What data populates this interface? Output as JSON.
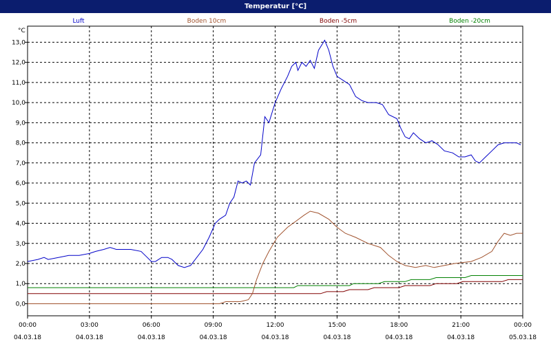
{
  "window": {
    "title": "Temperatur [°C]"
  },
  "chart_data": {
    "type": "line",
    "title": "Temperatur [°C]",
    "ylabel": "°C",
    "xlabel": "",
    "ylim": [
      -0.6,
      13.8
    ],
    "yticks": [
      0,
      1,
      2,
      3,
      4,
      5,
      6,
      7,
      8,
      9,
      10,
      11,
      12,
      13
    ],
    "ytick_labels": [
      "0,0",
      "1,0",
      "2,0",
      "3,0",
      "4,0",
      "5,0",
      "6,0",
      "7,0",
      "8,0",
      "9,0",
      "10,0",
      "11,0",
      "12,0",
      "13,0"
    ],
    "xlim": [
      "2018-03-04T00:00",
      "2018-03-05T00:00"
    ],
    "xticks": [
      {
        "time": "00:00",
        "date": "04.03.18",
        "hour": 0
      },
      {
        "time": "03:00",
        "date": "04.03.18",
        "hour": 3
      },
      {
        "time": "06:00",
        "date": "04.03.18",
        "hour": 6
      },
      {
        "time": "09:00",
        "date": "04.03.18",
        "hour": 9
      },
      {
        "time": "12:00",
        "date": "04.03.18",
        "hour": 12
      },
      {
        "time": "15:00",
        "date": "04.03.18",
        "hour": 15
      },
      {
        "time": "18:00",
        "date": "04.03.18",
        "hour": 18
      },
      {
        "time": "21:00",
        "date": "04.03.18",
        "hour": 21
      },
      {
        "time": "00:00",
        "date": "05.03.18",
        "hour": 24
      }
    ],
    "grid": true,
    "legend_position": "top",
    "series": [
      {
        "name": "Luft",
        "color": "#0000c8",
        "points": [
          [
            0,
            2.1
          ],
          [
            0.5,
            2.2
          ],
          [
            0.8,
            2.3
          ],
          [
            1,
            2.2
          ],
          [
            1.5,
            2.3
          ],
          [
            2,
            2.4
          ],
          [
            2.5,
            2.4
          ],
          [
            3,
            2.5
          ],
          [
            3.3,
            2.6
          ],
          [
            3.7,
            2.7
          ],
          [
            4,
            2.8
          ],
          [
            4.3,
            2.7
          ],
          [
            4.7,
            2.7
          ],
          [
            5,
            2.7
          ],
          [
            5.5,
            2.6
          ],
          [
            5.8,
            2.3
          ],
          [
            6,
            2.1
          ],
          [
            6.2,
            2.1
          ],
          [
            6.5,
            2.3
          ],
          [
            6.8,
            2.3
          ],
          [
            7,
            2.2
          ],
          [
            7.3,
            1.9
          ],
          [
            7.6,
            1.8
          ],
          [
            7.9,
            1.9
          ],
          [
            8.2,
            2.3
          ],
          [
            8.5,
            2.7
          ],
          [
            8.8,
            3.3
          ],
          [
            9.1,
            4.0
          ],
          [
            9.3,
            4.2
          ],
          [
            9.6,
            4.4
          ],
          [
            9.8,
            5.0
          ],
          [
            10.0,
            5.3
          ],
          [
            10.2,
            6.1
          ],
          [
            10.4,
            6.0
          ],
          [
            10.6,
            6.1
          ],
          [
            10.8,
            5.9
          ],
          [
            11.0,
            7.0
          ],
          [
            11.3,
            7.4
          ],
          [
            11.5,
            9.3
          ],
          [
            11.7,
            9.0
          ],
          [
            12.0,
            10.0
          ],
          [
            12.3,
            10.7
          ],
          [
            12.6,
            11.3
          ],
          [
            12.8,
            11.8
          ],
          [
            13.0,
            12.0
          ],
          [
            13.1,
            11.6
          ],
          [
            13.3,
            12.0
          ],
          [
            13.5,
            11.8
          ],
          [
            13.7,
            12.1
          ],
          [
            13.9,
            11.7
          ],
          [
            14.1,
            12.6
          ],
          [
            14.4,
            13.1
          ],
          [
            14.6,
            12.6
          ],
          [
            14.8,
            11.8
          ],
          [
            15.0,
            11.3
          ],
          [
            15.3,
            11.1
          ],
          [
            15.6,
            10.9
          ],
          [
            15.9,
            10.3
          ],
          [
            16.2,
            10.1
          ],
          [
            16.5,
            10.0
          ],
          [
            16.9,
            10.0
          ],
          [
            17.2,
            9.9
          ],
          [
            17.5,
            9.4
          ],
          [
            17.9,
            9.2
          ],
          [
            18.1,
            8.7
          ],
          [
            18.3,
            8.3
          ],
          [
            18.5,
            8.2
          ],
          [
            18.7,
            8.5
          ],
          [
            19.0,
            8.2
          ],
          [
            19.3,
            8.0
          ],
          [
            19.6,
            8.1
          ],
          [
            19.9,
            7.9
          ],
          [
            20.2,
            7.6
          ],
          [
            20.6,
            7.5
          ],
          [
            20.9,
            7.3
          ],
          [
            21.2,
            7.3
          ],
          [
            21.5,
            7.4
          ],
          [
            21.7,
            7.1
          ],
          [
            21.9,
            7.0
          ],
          [
            22.2,
            7.3
          ],
          [
            22.5,
            7.6
          ],
          [
            22.8,
            7.9
          ],
          [
            23.1,
            8.0
          ],
          [
            23.4,
            8.0
          ],
          [
            23.7,
            8.0
          ],
          [
            23.9,
            7.9
          ]
        ]
      },
      {
        "name": "Boden 10cm",
        "color": "#a0522d",
        "points": [
          [
            0,
            0
          ],
          [
            9.3,
            0
          ],
          [
            9.6,
            0.1
          ],
          [
            10.3,
            0.1
          ],
          [
            10.7,
            0.2
          ],
          [
            10.9,
            0.5
          ],
          [
            11.1,
            1.2
          ],
          [
            11.4,
            2.0
          ],
          [
            11.7,
            2.6
          ],
          [
            12.1,
            3.3
          ],
          [
            12.6,
            3.8
          ],
          [
            13.0,
            4.1
          ],
          [
            13.4,
            4.4
          ],
          [
            13.7,
            4.6
          ],
          [
            14.1,
            4.5
          ],
          [
            14.6,
            4.2
          ],
          [
            15.0,
            3.8
          ],
          [
            15.4,
            3.5
          ],
          [
            15.9,
            3.3
          ],
          [
            16.5,
            3.0
          ],
          [
            17.1,
            2.8
          ],
          [
            17.5,
            2.4
          ],
          [
            17.9,
            2.1
          ],
          [
            18.3,
            1.9
          ],
          [
            18.8,
            1.8
          ],
          [
            19.3,
            1.9
          ],
          [
            19.7,
            1.8
          ],
          [
            20.2,
            1.9
          ],
          [
            20.7,
            2.0
          ],
          [
            21.5,
            2.1
          ],
          [
            22.0,
            2.3
          ],
          [
            22.5,
            2.6
          ],
          [
            22.8,
            3.1
          ],
          [
            23.1,
            3.5
          ],
          [
            23.4,
            3.4
          ],
          [
            23.7,
            3.5
          ],
          [
            24.0,
            3.5
          ]
        ]
      },
      {
        "name": "Boden -5cm",
        "color": "#800000",
        "points": [
          [
            0,
            0.5
          ],
          [
            14.2,
            0.5
          ],
          [
            14.5,
            0.6
          ],
          [
            15.3,
            0.6
          ],
          [
            15.6,
            0.7
          ],
          [
            16.5,
            0.7
          ],
          [
            16.8,
            0.8
          ],
          [
            18.0,
            0.8
          ],
          [
            18.3,
            0.9
          ],
          [
            19.5,
            0.9
          ],
          [
            19.8,
            1.0
          ],
          [
            20.8,
            1.0
          ],
          [
            21.1,
            1.1
          ],
          [
            23.0,
            1.1
          ],
          [
            23.3,
            1.2
          ],
          [
            24.0,
            1.2
          ]
        ]
      },
      {
        "name": "Boden -20cm",
        "color": "#008000",
        "points": [
          [
            0,
            0.8
          ],
          [
            12.9,
            0.8
          ],
          [
            13.1,
            0.9
          ],
          [
            15.6,
            0.9
          ],
          [
            15.8,
            1.0
          ],
          [
            17.0,
            1.0
          ],
          [
            17.3,
            1.1
          ],
          [
            18.3,
            1.1
          ],
          [
            18.6,
            1.2
          ],
          [
            19.5,
            1.2
          ],
          [
            19.8,
            1.3
          ],
          [
            21.2,
            1.3
          ],
          [
            21.5,
            1.4
          ],
          [
            24.0,
            1.4
          ]
        ]
      }
    ]
  }
}
